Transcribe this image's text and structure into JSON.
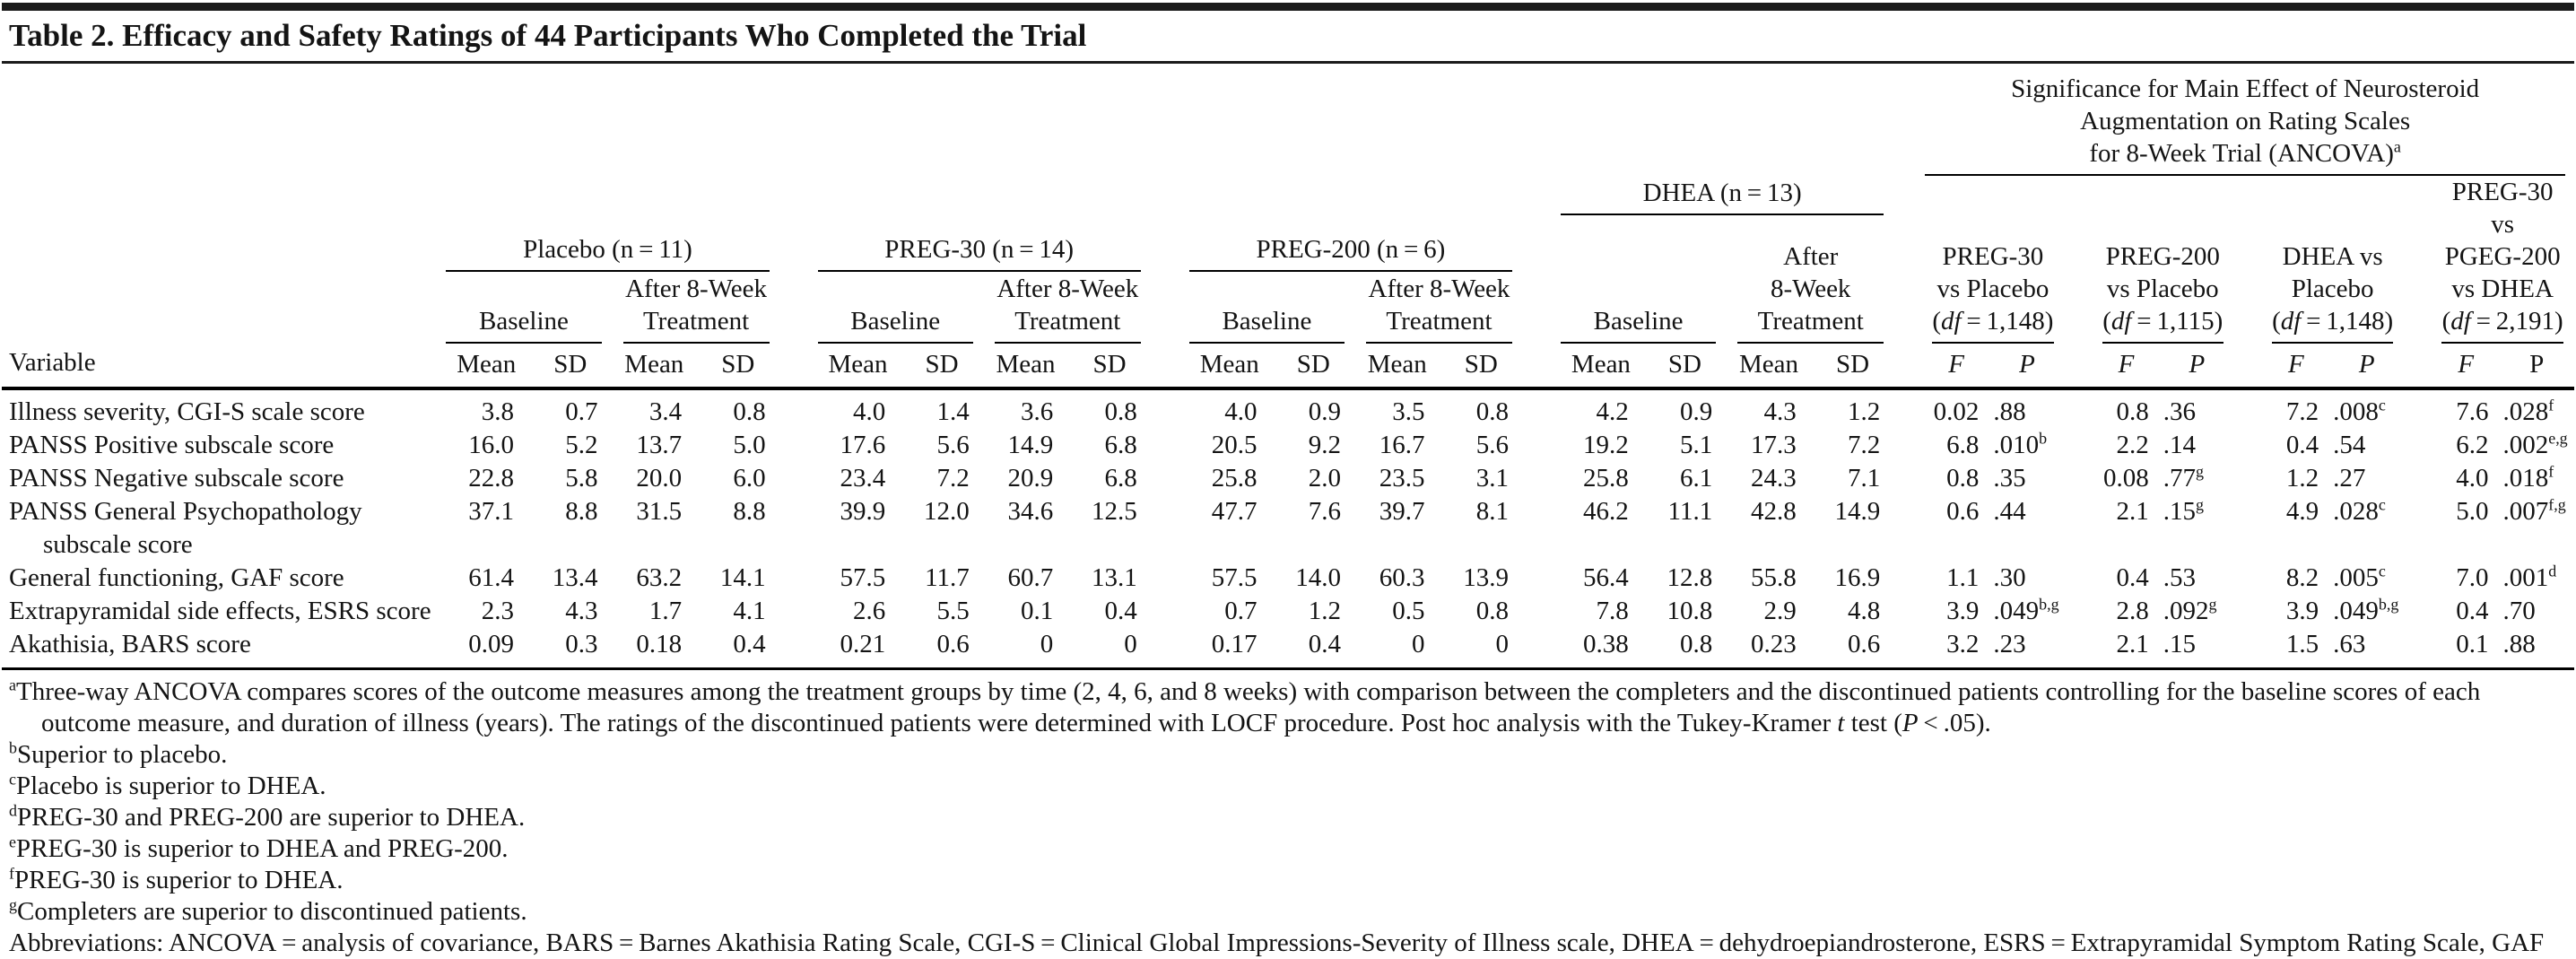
{
  "title": "Table 2. Efficacy and Safety Ratings of 44 Participants Who Completed the Trial",
  "header": {
    "variable_label": "Variable",
    "mean_label": "Mean",
    "sd_label": "SD",
    "f_label": "F",
    "p_label": "P",
    "significance_lines": [
      "Significance for Main Effect of Neurosteroid",
      "Augmentation on Rating Scales",
      "for 8-Week Trial (ANCOVA)^a"
    ],
    "groups": [
      {
        "id": "placebo",
        "label": "Placebo (n = 11)",
        "baseline": "Baseline",
        "after_lines": [
          "After 8-Week",
          "Treatment"
        ]
      },
      {
        "id": "preg-30",
        "label": "PREG-30 (n = 14)",
        "baseline": "Baseline",
        "after_lines": [
          "After 8-Week",
          "Treatment"
        ]
      },
      {
        "id": "preg-200",
        "label": "PREG-200 (n = 6)",
        "baseline": "Baseline",
        "after_lines": [
          "After 8-Week",
          "Treatment"
        ]
      },
      {
        "id": "dhea",
        "label": "DHEA (n = 13)",
        "baseline": "Baseline",
        "after_lines": [
          "After",
          "8-Week",
          "Treatment"
        ]
      }
    ],
    "comparisons": [
      {
        "id": "preg-30-vs-placebo",
        "lines": [
          "PREG-30",
          "vs Placebo",
          "(df = 1,148)"
        ],
        "p_italic": true
      },
      {
        "id": "preg-200-vs-placebo",
        "lines": [
          "PREG-200",
          "vs Placebo",
          "(df = 1,115)"
        ],
        "p_italic": true
      },
      {
        "id": "dhea-vs-placebo",
        "lines": [
          "DHEA vs",
          "Placebo",
          "(df = 1,148)"
        ],
        "p_italic": true
      },
      {
        "id": "preg-30-vs-pgeg-200-vs-dhea",
        "lines": [
          "PREG-30 vs",
          "PGEG-200",
          "vs DHEA",
          "(df = 2,191)"
        ],
        "p_italic": false
      }
    ]
  },
  "rows": [
    {
      "variable_lines": [
        "Illness severity, CGI-S scale score"
      ],
      "values": [
        "3.8",
        "0.7",
        "3.4",
        "0.8",
        "4.0",
        "1.4",
        "3.6",
        "0.8",
        "4.0",
        "0.9",
        "3.5",
        "0.8",
        "4.2",
        "0.9",
        "4.3",
        "1.2",
        "0.02",
        ".88",
        "0.8",
        ".36",
        "7.2",
        ".008^c",
        "7.6",
        ".028^f"
      ]
    },
    {
      "variable_lines": [
        "PANSS Positive subscale score"
      ],
      "values": [
        "16.0",
        "5.2",
        "13.7",
        "5.0",
        "17.6",
        "5.6",
        "14.9",
        "6.8",
        "20.5",
        "9.2",
        "16.7",
        "5.6",
        "19.2",
        "5.1",
        "17.3",
        "7.2",
        "6.8",
        ".010^b",
        "2.2",
        ".14",
        "0.4",
        ".54",
        "6.2",
        ".002^e,g"
      ]
    },
    {
      "variable_lines": [
        "PANSS Negative subscale score"
      ],
      "values": [
        "22.8",
        "5.8",
        "20.0",
        "6.0",
        "23.4",
        "7.2",
        "20.9",
        "6.8",
        "25.8",
        "2.0",
        "23.5",
        "3.1",
        "25.8",
        "6.1",
        "24.3",
        "7.1",
        "0.8",
        ".35",
        "0.08",
        ".77^g",
        "1.2",
        ".27",
        "4.0",
        ".018^f"
      ]
    },
    {
      "variable_lines": [
        "PANSS General Psychopathology",
        "subscale score"
      ],
      "values": [
        "37.1",
        "8.8",
        "31.5",
        "8.8",
        "39.9",
        "12.0",
        "34.6",
        "12.5",
        "47.7",
        "7.6",
        "39.7",
        "8.1",
        "46.2",
        "11.1",
        "42.8",
        "14.9",
        "0.6",
        ".44",
        "2.1",
        ".15^g",
        "4.9",
        ".028^c",
        "5.0",
        ".007^f,g"
      ]
    },
    {
      "variable_lines": [
        "General functioning, GAF score"
      ],
      "values": [
        "61.4",
        "13.4",
        "63.2",
        "14.1",
        "57.5",
        "11.7",
        "60.7",
        "13.1",
        "57.5",
        "14.0",
        "60.3",
        "13.9",
        "56.4",
        "12.8",
        "55.8",
        "16.9",
        "1.1",
        ".30",
        "0.4",
        ".53",
        "8.2",
        ".005^c",
        "7.0",
        ".001^d"
      ]
    },
    {
      "variable_lines": [
        "Extrapyramidal side effects, ESRS score"
      ],
      "values": [
        "2.3",
        "4.3",
        "1.7",
        "4.1",
        "2.6",
        "5.5",
        "0.1",
        "0.4",
        "0.7",
        "1.2",
        "0.5",
        "0.8",
        "7.8",
        "10.8",
        "2.9",
        "4.8",
        "3.9",
        ".049^b,g",
        "2.8",
        ".092^g",
        "3.9",
        ".049^b,g",
        "0.4",
        ".70"
      ]
    },
    {
      "variable_lines": [
        "Akathisia, BARS score"
      ],
      "values": [
        "0.09",
        "0.3",
        "0.18",
        "0.4",
        "0.21",
        "0.6",
        "0",
        "0",
        "0.17",
        "0.4",
        "0",
        "0",
        "0.38",
        "0.8",
        "0.23",
        "0.6",
        "3.2",
        ".23",
        "2.1",
        ".15",
        "1.5",
        ".63",
        "0.1",
        ".88"
      ]
    }
  ],
  "footnotes": [
    {
      "sup": "a",
      "text": "Three-way ANCOVA compares scores of the outcome measures among the treatment groups by time (2, 4, 6, and 8 weeks) with comparison between the completers and the discontinued patients controlling for the baseline scores of each outcome measure, and duration of illness (years). The ratings of the discontinued patients were determined with LOCF procedure. Post hoc analysis with the Tukey-Kramer t test (P < .05)."
    },
    {
      "sup": "b",
      "text": "Superior to placebo."
    },
    {
      "sup": "c",
      "text": "Placebo is superior to DHEA."
    },
    {
      "sup": "d",
      "text": "PREG-30 and PREG-200 are superior to DHEA."
    },
    {
      "sup": "e",
      "text": "PREG-30 is superior to DHEA and PREG-200."
    },
    {
      "sup": "f",
      "text": "PREG-30 is superior to DHEA."
    },
    {
      "sup": "g",
      "text": "Completers are superior to discontinued patients."
    }
  ],
  "abbreviations": "Abbreviations: ANCOVA = analysis of covariance, BARS = Barnes Akathisia Rating Scale, CGI-S = Clinical Global Impressions-Severity of Illness scale, DHEA = dehydroepiandrosterone, ESRS = Extrapyramidal Symptom Rating Scale, GAF = Global Assessment of Functioning scale, PANSS = Positive and Negative Syndrome Scale, PREG = pregnenolone.",
  "colors": {
    "rule": "#1b1b1b",
    "text": "#141414",
    "background": "#ffffff"
  }
}
